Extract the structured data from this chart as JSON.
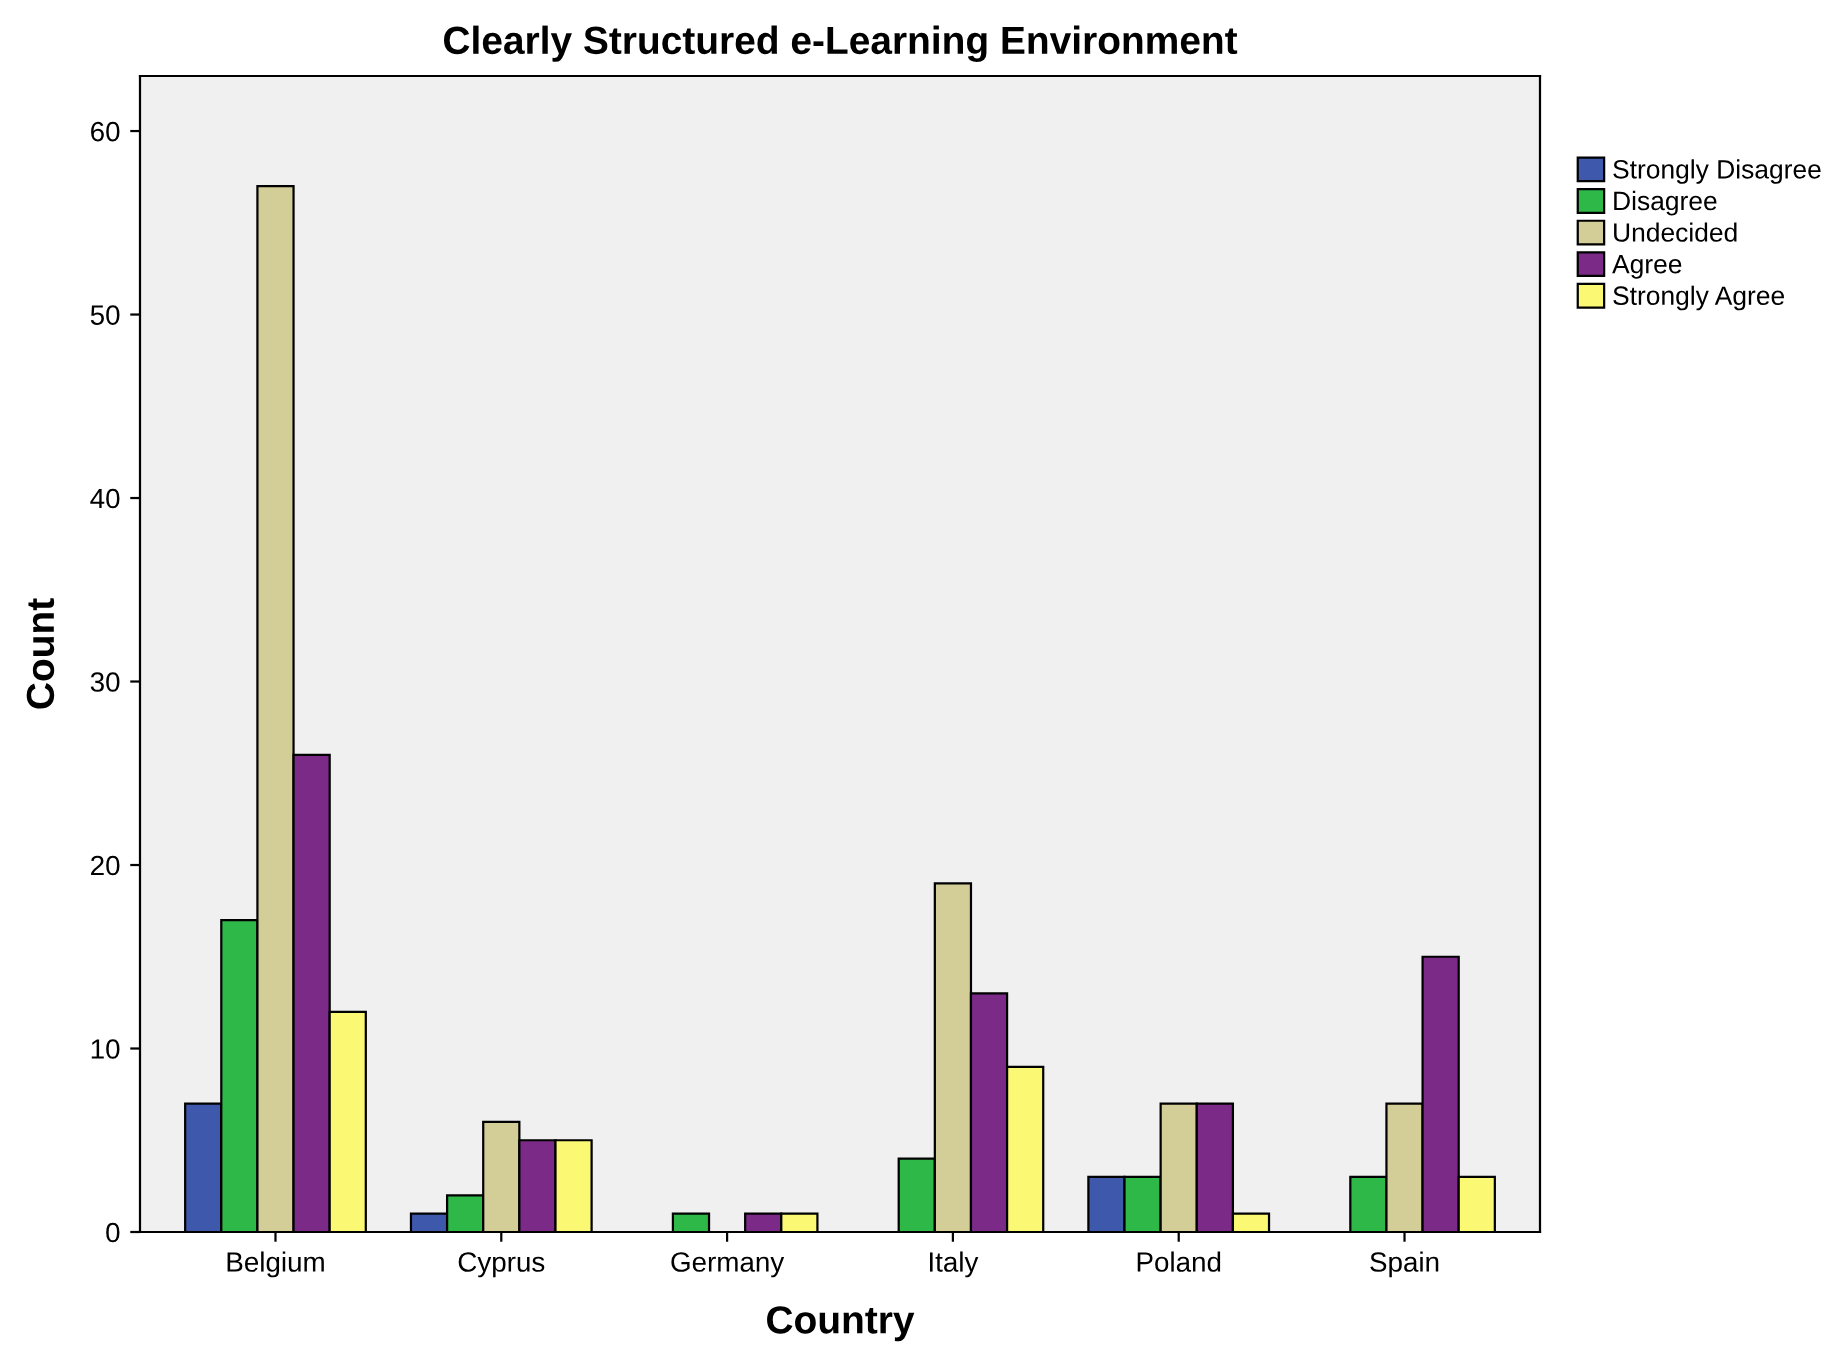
{
  "chart_data": {
    "type": "bar",
    "title": "Clearly Structured e-Learning Environment",
    "xlabel": "Country",
    "ylabel": "Count",
    "categories": [
      "Belgium",
      "Cyprus",
      "Germany",
      "Italy",
      "Poland",
      "Spain"
    ],
    "series": [
      {
        "name": "Strongly Disagree",
        "color": "#3e58ac",
        "values": [
          7,
          1,
          null,
          null,
          3,
          null
        ]
      },
      {
        "name": "Disagree",
        "color": "#2eb848",
        "values": [
          17,
          2,
          1,
          4,
          3,
          3
        ]
      },
      {
        "name": "Undecided",
        "color": "#d3ce97",
        "values": [
          57,
          6,
          null,
          19,
          7,
          7
        ]
      },
      {
        "name": "Agree",
        "color": "#7b2a88",
        "values": [
          26,
          5,
          1,
          13,
          7,
          15
        ]
      },
      {
        "name": "Strongly Agree",
        "color": "#fbf873",
        "values": [
          12,
          5,
          1,
          9,
          1,
          3
        ]
      }
    ],
    "ylim": [
      0,
      63
    ],
    "yticks": [
      0,
      10,
      20,
      30,
      40,
      50,
      60
    ],
    "grid": false,
    "legend": "top right"
  }
}
